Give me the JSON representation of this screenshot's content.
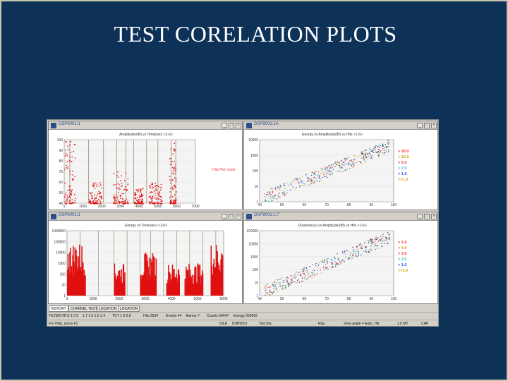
{
  "slide": {
    "title": "TEST CORELATION PLOTS"
  },
  "windows": [
    {
      "id": "w1",
      "title": "DSP9001:1",
      "plot_title": "Amplitude(dB) vs Time(sec) <1-6>",
      "legend_text": "Hits Plot mode"
    },
    {
      "id": "w2",
      "title": "DSP9001:1A",
      "plot_title": "Energy vs Amplitude(dB) vs Hits <1-6>",
      "legend": [
        {
          "text": "> 20.0",
          "color": "#ff3030"
        },
        {
          "text": "> 10.0",
          "color": "#d4a017"
        },
        {
          "text": "> 5.0",
          "color": "#ff3030"
        },
        {
          "text": "> 2.0",
          "color": "#30c0c0"
        },
        {
          "text": "> 1.0",
          "color": "#3050ff"
        },
        {
          "text": "<=1.0",
          "color": "#d4a017"
        }
      ]
    },
    {
      "id": "w3",
      "title": "DSP9001:1",
      "plot_title": "Energy vs Time(sec) <1-6>"
    },
    {
      "id": "w4",
      "title": "DSP9001:1:7",
      "plot_title": "Duration(us) vs Amplitude(dB) vs Hits <1-6>",
      "legend": [
        {
          "text": "> 5.0",
          "color": "#ff3030"
        },
        {
          "text": "> 4.0",
          "color": "#d4a017"
        },
        {
          "text": "> 3.0",
          "color": "#ff3030"
        },
        {
          "text": "> 2.0",
          "color": "#30c0c0"
        },
        {
          "text": "> 1.0",
          "color": "#3050ff"
        },
        {
          "text": "<=1.0",
          "color": "#d4a017"
        }
      ]
    }
  ],
  "tabs": [
    "HISTORY",
    "CHANNEL TEST",
    "LOCATION",
    "LOCATION"
  ],
  "status_bar": {
    "row1": [
      "FILTER HITS 1 0 0",
      "1.7 1.6 1.5 1.4",
      "TOT 1 0 0.0",
      "Hits 2594",
      "Events 44",
      "Alarms 7",
      "Counts 60447",
      "Energy 259962"
    ],
    "row2": [
      "For Help, press F1",
      "IDLE",
      "DSP9001",
      "Test dta",
      "Rdy",
      "View angle = Auto_TW",
      "1.0 MT",
      "CAP"
    ]
  },
  "chart_data": [
    {
      "type": "scatter",
      "title": "Amplitude(dB) vs Time(sec) <1-6>",
      "x_ticks": [
        "0",
        "1000",
        "2000",
        "3000",
        "4000",
        "5000",
        "6000",
        "7000"
      ],
      "y_ticks": [
        "100",
        "90",
        "80",
        "70",
        "60",
        "50",
        "40"
      ],
      "xlim": [
        0,
        7000
      ],
      "ylim": [
        40,
        100
      ],
      "series": [
        {
          "values_desc": "",
          "clusters": [
            {
              "x": [
                0,
                600
              ],
              "y": [
                40,
                100
              ]
            },
            {
              "x": [
                1300,
                2000
              ],
              "y": [
                40,
                60
              ]
            },
            {
              "x": [
                2600,
                3400
              ],
              "y": [
                40,
                70
              ]
            },
            {
              "x": [
                3700,
                4200
              ],
              "y": [
                40,
                55
              ]
            },
            {
              "x": [
                4500,
                5200
              ],
              "y": [
                40,
                60
              ]
            },
            {
              "x": [
                5600,
                5950
              ],
              "y": [
                40,
                100
              ]
            }
          ]
        }
      ],
      "vlines": [
        300,
        1300,
        2100,
        2800,
        3300,
        3700,
        4400,
        5000,
        5700,
        5950
      ]
    },
    {
      "type": "scatter",
      "title": "Energy vs Amplitude(dB) vs Hits <1-6>",
      "x_ticks": [
        "40",
        "50",
        "60",
        "70",
        "80",
        "90",
        "100"
      ],
      "y_ticks": [
        "10000",
        "1000",
        "100",
        "10",
        "1"
      ],
      "xlim": [
        40,
        100
      ],
      "ylog": true,
      "ylim": [
        1,
        10000
      ]
    },
    {
      "type": "bar",
      "title": "Energy vs Time(sec) <1-6>",
      "x_ticks": [
        "0",
        "1000",
        "2000",
        "3000",
        "4000",
        "5000",
        "6000"
      ],
      "y_ticks": [
        "1000000",
        "100000",
        "10000",
        "1000",
        "100",
        "10",
        "1"
      ],
      "xlim": [
        0,
        6000
      ],
      "ylog": true,
      "ylim": [
        1,
        1000000
      ],
      "clusters": [
        {
          "x": [
            0,
            700
          ],
          "max": 100000
        },
        {
          "x": [
            1800,
            2200
          ],
          "max": 1000
        },
        {
          "x": [
            2800,
            3400
          ],
          "max": 10000
        },
        {
          "x": [
            3800,
            4300
          ],
          "max": 1000
        },
        {
          "x": [
            4500,
            5200
          ],
          "max": 1000
        },
        {
          "x": [
            5500,
            5950
          ],
          "max": 100000
        }
      ]
    },
    {
      "type": "scatter",
      "title": "Duration(us) vs Amplitude(dB) vs Hits <1-6>",
      "x_ticks": [
        "40",
        "50",
        "60",
        "70",
        "80",
        "90",
        "100"
      ],
      "y_ticks": [
        "100000",
        "10000",
        "1000",
        "100",
        "10",
        "1"
      ],
      "xlim": [
        40,
        100
      ],
      "ylog": true,
      "ylim": [
        1,
        100000
      ]
    }
  ]
}
